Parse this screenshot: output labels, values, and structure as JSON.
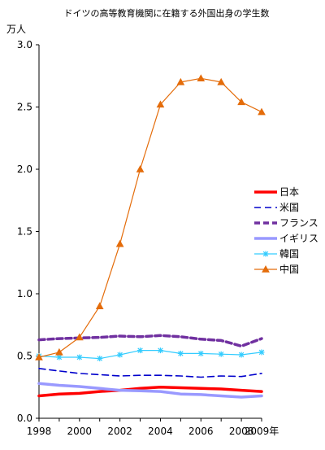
{
  "chart_data": {
    "type": "line",
    "title": "ドイツの高等教育機関に在籍する外国出身の学生数",
    "ylabel": "万人",
    "xlabel_suffix": "年",
    "xlim": [
      1998,
      2009
    ],
    "ylim": [
      0,
      3
    ],
    "y_ticks": [
      "0.0",
      "0.5",
      "1.0",
      "1.5",
      "2.0",
      "2.5",
      "3.0"
    ],
    "x_ticks": [
      "1998",
      "2000",
      "2002",
      "2004",
      "2006",
      "2008",
      "2009年"
    ],
    "grid": false,
    "legend_position": "right",
    "x": [
      1998,
      1999,
      2000,
      2001,
      2002,
      2003,
      2004,
      2005,
      2006,
      2007,
      2008,
      2009
    ],
    "series": [
      {
        "name": "日本",
        "color": "#ff0000",
        "style": "solid-thick",
        "marker": "none",
        "values": [
          0.18,
          0.195,
          0.2,
          0.215,
          0.225,
          0.24,
          0.25,
          0.245,
          0.24,
          0.235,
          0.225,
          0.215
        ]
      },
      {
        "name": "米国",
        "color": "#0000cc",
        "style": "dashed",
        "marker": "none",
        "values": [
          0.4,
          0.38,
          0.36,
          0.35,
          0.34,
          0.345,
          0.345,
          0.34,
          0.33,
          0.34,
          0.335,
          0.36
        ]
      },
      {
        "name": "フランス",
        "color": "#7030a0",
        "style": "dashed-thick",
        "marker": "none",
        "values": [
          0.63,
          0.64,
          0.645,
          0.65,
          0.66,
          0.655,
          0.665,
          0.655,
          0.635,
          0.625,
          0.58,
          0.64
        ]
      },
      {
        "name": "イギリス",
        "color": "#9999ff",
        "style": "solid-thick",
        "marker": "none",
        "values": [
          0.28,
          0.265,
          0.255,
          0.24,
          0.225,
          0.22,
          0.215,
          0.195,
          0.19,
          0.18,
          0.17,
          0.18
        ]
      },
      {
        "name": "韓国",
        "color": "#33ccff",
        "style": "solid",
        "marker": "star",
        "values": [
          0.5,
          0.49,
          0.49,
          0.48,
          0.51,
          0.545,
          0.545,
          0.52,
          0.52,
          0.515,
          0.51,
          0.53
        ]
      },
      {
        "name": "中国",
        "color": "#e46c0a",
        "style": "solid",
        "marker": "triangle",
        "values": [
          0.49,
          0.53,
          0.65,
          0.9,
          1.4,
          2.0,
          2.52,
          2.7,
          2.73,
          2.7,
          2.54,
          2.46
        ]
      }
    ]
  }
}
